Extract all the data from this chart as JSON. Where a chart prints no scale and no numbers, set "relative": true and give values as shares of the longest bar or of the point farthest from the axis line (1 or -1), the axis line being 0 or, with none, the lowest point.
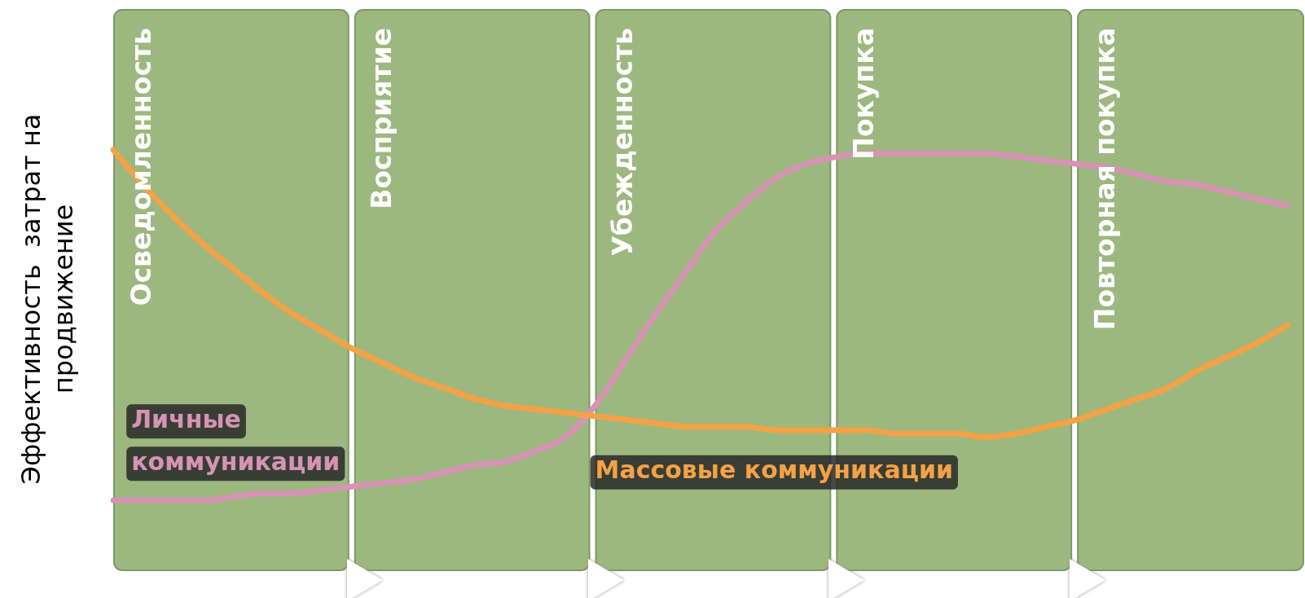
{
  "chart_data": {
    "type": "line",
    "relative": true,
    "ylabel": "Эффективность  затрат на продвижение",
    "line_style": "solid",
    "categories": [
      null,
      "Осведомленность",
      null,
      null,
      null,
      null,
      null,
      null,
      null,
      "Восприятие",
      null,
      null,
      null,
      null,
      null,
      null,
      null,
      "Убежденность",
      null,
      null,
      null,
      null,
      null,
      null,
      null,
      "Покупка",
      null,
      null,
      null,
      null,
      null,
      null,
      null,
      "Повторная покупка",
      null,
      null,
      null,
      null,
      null,
      null
    ],
    "series": [
      {
        "name": "Массовые коммуникации",
        "color": "#f4a245",
        "values": [
          1.0,
          0.9,
          0.81,
          0.73,
          0.66,
          0.59,
          0.53,
          0.48,
          0.43,
          0.39,
          0.35,
          0.32,
          0.29,
          0.27,
          0.26,
          0.25,
          0.24,
          0.23,
          0.22,
          0.21,
          0.21,
          0.21,
          0.2,
          0.2,
          0.2,
          0.2,
          0.19,
          0.19,
          0.19,
          0.18,
          0.19,
          0.21,
          0.23,
          0.26,
          0.29,
          0.32,
          0.37,
          0.41,
          0.45,
          0.5
        ]
      },
      {
        "name": "Личные коммуникации",
        "color": "#d693b4",
        "values": [
          0.0,
          0.0,
          0.0,
          0.0,
          0.01,
          0.02,
          0.02,
          0.03,
          0.04,
          0.05,
          0.06,
          0.08,
          0.1,
          0.11,
          0.14,
          0.18,
          0.27,
          0.4,
          0.53,
          0.65,
          0.77,
          0.85,
          0.92,
          0.96,
          0.98,
          0.99,
          0.99,
          0.99,
          0.99,
          0.99,
          0.98,
          0.97,
          0.96,
          0.95,
          0.93,
          0.91,
          0.9,
          0.88,
          0.86,
          0.84
        ]
      }
    ]
  }
}
